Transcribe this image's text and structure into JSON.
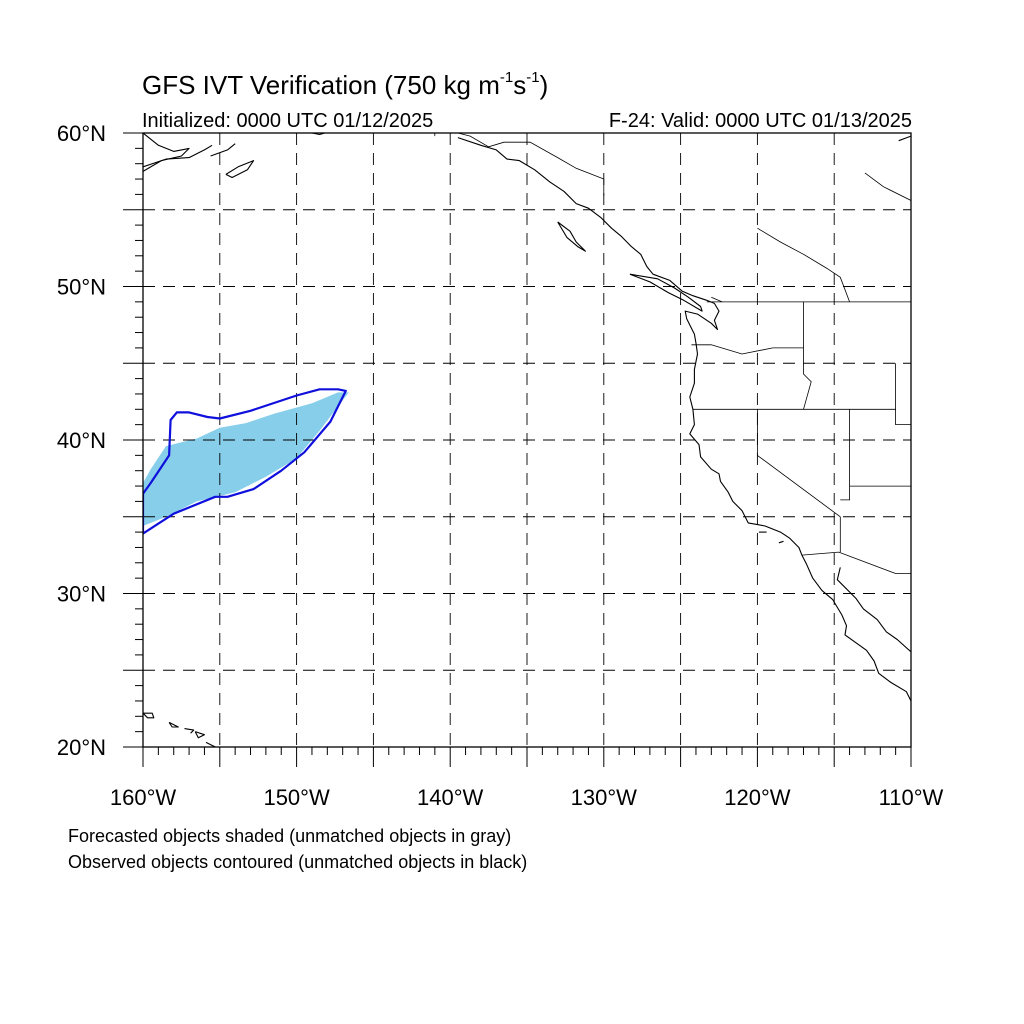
{
  "title": {
    "prefix": "GFS IVT Verification (750 kg m",
    "sup1": "-1",
    "mid": "s",
    "sup2": "-1",
    "suffix": ")"
  },
  "subtitle_left": "Initialized: 0000 UTC 01/12/2025",
  "subtitle_right": "F-24: Valid: 0000 UTC 01/13/2025",
  "notes": [
    "Forecasted objects shaded (unmatched objects in gray)",
    "Observed objects contoured (unmatched objects in black)"
  ],
  "map": {
    "projection": "cylindrical-equidistant",
    "lon_range": [
      -160,
      -110
    ],
    "lat_range": [
      20,
      60
    ],
    "lat_tick_labels": [
      {
        "lat": 60,
        "text": "60°N"
      },
      {
        "lat": 50,
        "text": "50°N"
      },
      {
        "lat": 40,
        "text": "40°N"
      },
      {
        "lat": 30,
        "text": "30°N"
      },
      {
        "lat": 20,
        "text": "20°N"
      }
    ],
    "lon_tick_labels": [
      {
        "lon": -160,
        "text": "160°W"
      },
      {
        "lon": -150,
        "text": "150°W"
      },
      {
        "lon": -140,
        "text": "140°W"
      },
      {
        "lon": -130,
        "text": "130°W"
      },
      {
        "lon": -120,
        "text": "120°W"
      },
      {
        "lon": -110,
        "text": "110°W"
      }
    ],
    "gridline_spacing_deg": 5,
    "gridline_style": "dashed",
    "colors": {
      "forecast_fill": "#87ceeb",
      "observed_contour": "#1010dd",
      "coastline": "#000000",
      "gridline": "#000000"
    },
    "forecast_object": [
      [
        -160,
        34.4
      ],
      [
        -158.5,
        35.0
      ],
      [
        -156.5,
        36.0
      ],
      [
        -154,
        36.6
      ],
      [
        -152,
        37.6
      ],
      [
        -150,
        38.8
      ],
      [
        -148.5,
        40.6
      ],
      [
        -147.3,
        42.2
      ],
      [
        -146.6,
        43.1
      ],
      [
        -147.3,
        43.1
      ],
      [
        -149,
        42.4
      ],
      [
        -151.5,
        41.7
      ],
      [
        -153.3,
        41.1
      ],
      [
        -155,
        40.8
      ],
      [
        -156.5,
        40.1
      ],
      [
        -158.5,
        39.6
      ],
      [
        -159.5,
        38.1
      ],
      [
        -160,
        37.2
      ]
    ],
    "observed_object": [
      [
        -160,
        33.9
      ],
      [
        -158,
        35.2
      ],
      [
        -155.3,
        36.3
      ],
      [
        -154.5,
        36.3
      ],
      [
        -152.8,
        36.8
      ],
      [
        -151,
        38.0
      ],
      [
        -149.5,
        39.2
      ],
      [
        -147.8,
        41.2
      ],
      [
        -146.8,
        43.2
      ],
      [
        -147.3,
        43.3
      ],
      [
        -148.5,
        43.3
      ],
      [
        -150,
        42.9
      ],
      [
        -153,
        41.9
      ],
      [
        -155,
        41.4
      ],
      [
        -155.8,
        41.5
      ],
      [
        -157,
        41.8
      ],
      [
        -157.8,
        41.8
      ],
      [
        -158.2,
        41.3
      ],
      [
        -158.3,
        39.0
      ],
      [
        -159.5,
        37.2
      ],
      [
        -160,
        36.5
      ]
    ],
    "coastlines": [
      [
        [
          -160,
          60
        ],
        [
          -159,
          59.2
        ],
        [
          -158,
          58.8
        ],
        [
          -157,
          59
        ],
        [
          -157.5,
          58.5
        ],
        [
          -158.8,
          58.2
        ],
        [
          -160,
          57.5
        ]
      ],
      [
        [
          -160,
          57.8
        ],
        [
          -158.5,
          58.3
        ],
        [
          -157,
          58.4
        ],
        [
          -156,
          58.9
        ],
        [
          -155.5,
          59.2
        ]
      ],
      [
        [
          -155.6,
          58.5
        ],
        [
          -154.5,
          58.9
        ],
        [
          -154,
          59.3
        ]
      ],
      [
        [
          -154.6,
          57.3
        ],
        [
          -153.8,
          57.8
        ],
        [
          -152.8,
          58.2
        ],
        [
          -153.2,
          57.6
        ],
        [
          -154.2,
          57.1
        ],
        [
          -154.6,
          57.3
        ]
      ],
      [
        [
          -149,
          60
        ],
        [
          -148.5,
          59.9
        ],
        [
          -147.5,
          60.2
        ]
      ],
      [
        [
          -139.5,
          59.7
        ],
        [
          -138,
          59.2
        ],
        [
          -137,
          58.9
        ],
        [
          -136.3,
          58.3
        ],
        [
          -135.5,
          58.2
        ],
        [
          -134.5,
          57.6
        ],
        [
          -133.5,
          56.8
        ],
        [
          -132.6,
          56.2
        ],
        [
          -131.8,
          55.4
        ],
        [
          -131,
          55.1
        ],
        [
          -130.2,
          54.5
        ],
        [
          -129.5,
          53.8
        ],
        [
          -128.9,
          53.3
        ],
        [
          -128.2,
          52.6
        ],
        [
          -127.6,
          52.1
        ],
        [
          -127.2,
          51.3
        ],
        [
          -126.8,
          50.8
        ],
        [
          -125.7,
          50.4
        ],
        [
          -124.9,
          49.7
        ],
        [
          -124.2,
          49.4
        ],
        [
          -123.3,
          49.1
        ],
        [
          -122.8,
          48.9
        ],
        [
          -122.5,
          48.4
        ],
        [
          -122.8,
          47.8
        ],
        [
          -122.6,
          47.2
        ],
        [
          -123,
          47.6
        ],
        [
          -123.9,
          48.2
        ],
        [
          -124.7,
          48.4
        ],
        [
          -124.6,
          47.9
        ],
        [
          -124.1,
          46.9
        ],
        [
          -124,
          46.3
        ],
        [
          -123.9,
          45.6
        ],
        [
          -124.1,
          44.6
        ],
        [
          -124.1,
          43.7
        ],
        [
          -124.4,
          42.8
        ],
        [
          -124.2,
          42.0
        ],
        [
          -124.1,
          41.0
        ],
        [
          -124.4,
          40.4
        ],
        [
          -123.8,
          39.7
        ],
        [
          -123.7,
          38.9
        ],
        [
          -123,
          38.1
        ],
        [
          -122.5,
          37.8
        ],
        [
          -122.4,
          37.3
        ],
        [
          -121.9,
          36.6
        ],
        [
          -121.6,
          36.0
        ],
        [
          -121,
          35.4
        ],
        [
          -120.6,
          34.6
        ],
        [
          -119.5,
          34.4
        ],
        [
          -118.5,
          34.0
        ],
        [
          -117.9,
          33.6
        ],
        [
          -117.3,
          33.0
        ],
        [
          -117.1,
          32.5
        ],
        [
          -116.8,
          31.9
        ],
        [
          -116.4,
          31.0
        ],
        [
          -115.8,
          30.2
        ],
        [
          -115.1,
          29.6
        ],
        [
          -114.5,
          28.6
        ],
        [
          -114.2,
          27.9
        ],
        [
          -114.3,
          27.3
        ],
        [
          -113.6,
          26.8
        ],
        [
          -112.9,
          26.3
        ],
        [
          -112.4,
          25.6
        ],
        [
          -112.1,
          24.8
        ],
        [
          -111.3,
          24.2
        ],
        [
          -110.3,
          23.6
        ],
        [
          -110,
          23.0
        ]
      ],
      [
        [
          -128.3,
          50.8
        ],
        [
          -127,
          50.3
        ],
        [
          -125.8,
          49.6
        ],
        [
          -124.8,
          49.1
        ],
        [
          -123.6,
          48.4
        ],
        [
          -123.7,
          48.7
        ],
        [
          -124.5,
          49.3
        ],
        [
          -125.4,
          49.9
        ],
        [
          -126.5,
          50.5
        ],
        [
          -128.3,
          50.8
        ]
      ],
      [
        [
          -133,
          54.2
        ],
        [
          -132.2,
          53.6
        ],
        [
          -131.8,
          52.9
        ],
        [
          -131.2,
          52.3
        ],
        [
          -131.7,
          52.6
        ],
        [
          -132.4,
          53.2
        ],
        [
          -133,
          54.2
        ]
      ],
      [
        [
          -114.6,
          31.7
        ],
        [
          -114.8,
          30.9
        ],
        [
          -113.6,
          29.7
        ],
        [
          -113.1,
          29.0
        ],
        [
          -112.2,
          28.3
        ],
        [
          -111.6,
          27.5
        ],
        [
          -110.9,
          27.0
        ],
        [
          -110,
          26.2
        ],
        [
          -109.5,
          25.5
        ]
      ],
      [
        [
          -118.6,
          33.3
        ],
        [
          -118.3,
          33.4
        ]
      ],
      [
        [
          -119.9,
          34.0
        ],
        [
          -119.4,
          34.0
        ]
      ],
      [
        [
          -160,
          22.2
        ],
        [
          -159.4,
          22.2
        ],
        [
          -159.3,
          21.9
        ],
        [
          -159.7,
          21.9
        ],
        [
          -160,
          22.2
        ]
      ],
      [
        [
          -158.3,
          21.6
        ],
        [
          -157.7,
          21.3
        ],
        [
          -158.1,
          21.3
        ],
        [
          -158.3,
          21.6
        ]
      ],
      [
        [
          -157.3,
          21.2
        ],
        [
          -156.7,
          21.1
        ],
        [
          -156.9,
          20.9
        ]
      ],
      [
        [
          -156.6,
          21.0
        ],
        [
          -156,
          20.8
        ],
        [
          -156.4,
          20.6
        ],
        [
          -156.6,
          21.0
        ]
      ],
      [
        [
          -155.9,
          20.3
        ],
        [
          -155.1,
          19.9
        ],
        [
          -155.7,
          19.8
        ]
      ],
      [
        [
          -110.8,
          59.5
        ],
        [
          -110,
          59.8
        ]
      ]
    ],
    "boundaries": [
      [
        [
          -141,
          60
        ],
        [
          -141,
          59.8
        ]
      ],
      [
        [
          -123.3,
          49
        ],
        [
          -110,
          49
        ]
      ],
      [
        [
          -124.3,
          46.2
        ],
        [
          -123,
          46.2
        ],
        [
          -121,
          45.6
        ],
        [
          -119,
          46
        ],
        [
          -117,
          46
        ]
      ],
      [
        [
          -124.2,
          42
        ],
        [
          -111,
          42
        ]
      ],
      [
        [
          -117,
          49
        ],
        [
          -117,
          44.3
        ],
        [
          -116.5,
          43.8
        ],
        [
          -117,
          42
        ]
      ],
      [
        [
          -120,
          42
        ],
        [
          -120,
          39
        ],
        [
          -114.6,
          35
        ]
      ],
      [
        [
          -114,
          42
        ],
        [
          -114,
          36.1
        ],
        [
          -114.6,
          36.1
        ]
      ],
      [
        [
          -114,
          37
        ],
        [
          -110,
          37
        ]
      ],
      [
        [
          -117.1,
          32.5
        ],
        [
          -114.7,
          32.7
        ],
        [
          -111,
          31.3
        ],
        [
          -110,
          31.3
        ]
      ],
      [
        [
          -111,
          45
        ],
        [
          -111,
          41
        ],
        [
          -110,
          41
        ]
      ],
      [
        [
          -114.6,
          35
        ],
        [
          -114.6,
          32.7
        ]
      ],
      [
        [
          -123,
          49.3
        ],
        [
          -122.3,
          49
        ]
      ],
      [
        [
          -130,
          55.9
        ],
        [
          -130,
          57
        ],
        [
          -131.8,
          57.7
        ],
        [
          -133,
          58.4
        ],
        [
          -134.8,
          59.4
        ],
        [
          -136.5,
          59.4
        ],
        [
          -137.5,
          59.1
        ],
        [
          -138.7,
          59.8
        ],
        [
          -139.5,
          60
        ]
      ],
      [
        [
          -113,
          57.4
        ],
        [
          -111.8,
          56.5
        ],
        [
          -110,
          55.6
        ]
      ],
      [
        [
          -120,
          53.8
        ],
        [
          -118.5,
          52.9
        ],
        [
          -117,
          52.1
        ],
        [
          -115.5,
          51.2
        ],
        [
          -114.6,
          50.6
        ],
        [
          -114,
          49
        ]
      ]
    ]
  }
}
